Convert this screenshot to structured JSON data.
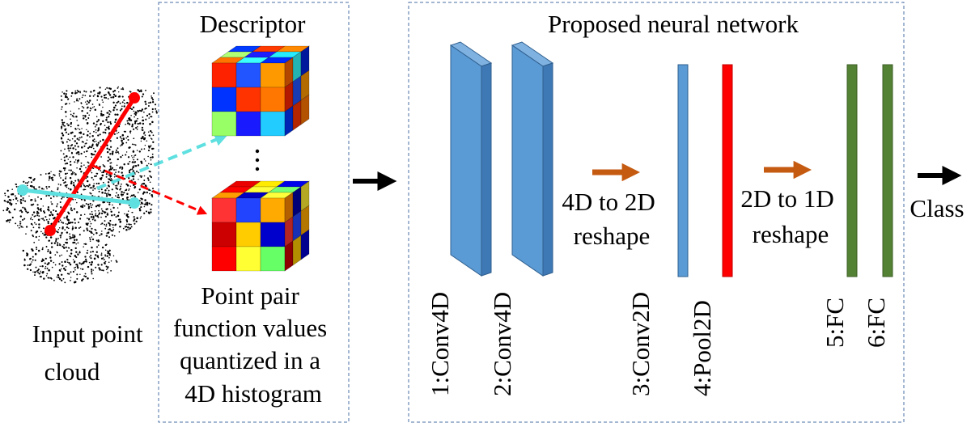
{
  "input": {
    "label_lines": [
      "Input point",
      "cloud"
    ]
  },
  "descriptor": {
    "title": "Descriptor",
    "caption_lines": [
      "Point pair",
      "function values",
      "quantized in a",
      "4D histogram"
    ]
  },
  "network": {
    "title": "Proposed neural network",
    "layers": [
      {
        "name": "1:Conv4D",
        "color": "#5b9bd5"
      },
      {
        "name": "2:Conv4D",
        "color": "#5b9bd5"
      },
      {
        "name": "3:Conv2D",
        "color": "#5b9bd5"
      },
      {
        "name": "4:Pool2D",
        "color": "#ff0000"
      },
      {
        "name": "5:FC",
        "color": "#548235"
      },
      {
        "name": "6:FC",
        "color": "#548235"
      }
    ],
    "reshape1_lines": [
      "4D to 2D",
      "reshape"
    ],
    "reshape2_lines": [
      "2D to 1D",
      "reshape"
    ]
  },
  "output": {
    "label": "Class"
  },
  "colors": {
    "box_border": "#4a6fa5",
    "arrow_black": "#000000",
    "arrow_orange": "#c55a11",
    "pair_red": "#ff0000",
    "pair_cyan": "#5fe0e0"
  }
}
